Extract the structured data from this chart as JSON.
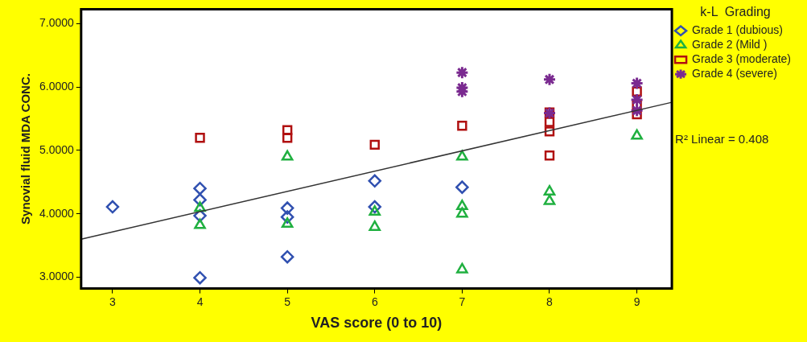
{
  "chart_data": {
    "type": "scatter",
    "xlabel": "VAS score (0 to 10)",
    "ylabel": "Synovial fluid MDA CONC.",
    "legend_title": "k-L  Grading",
    "legend": "right",
    "grid": false,
    "xlim": [
      2.64,
      9.4
    ],
    "xticks": [
      3,
      4,
      5,
      6,
      7,
      8,
      9
    ],
    "ylim": [
      2.82,
      7.23
    ],
    "yticks": [
      {
        "value": 3,
        "label": "3.0000"
      },
      {
        "value": 4,
        "label": "4.0000"
      },
      {
        "value": 5,
        "label": "5.0000"
      },
      {
        "value": 6,
        "label": "6.0000"
      },
      {
        "value": 7,
        "label": "7.0000"
      }
    ],
    "series": [
      {
        "name": "Grade 1 (dubious)",
        "color": "#3050b0",
        "marker": "diamond",
        "x": [
          3,
          4,
          4,
          4,
          4,
          5,
          5,
          5,
          6,
          6,
          7
        ],
        "values": [
          4.11,
          4.4,
          4.22,
          3.97,
          2.99,
          4.09,
          3.95,
          3.32,
          4.52,
          4.11,
          4.42
        ]
      },
      {
        "name": "Grade 2 (Mild )",
        "color": "#20b040",
        "marker": "triangle",
        "x": [
          4,
          4,
          5,
          5,
          6,
          6,
          7,
          7,
          7,
          7,
          8,
          8,
          9
        ],
        "values": [
          4.09,
          3.82,
          4.9,
          3.84,
          4.03,
          3.79,
          4.9,
          4.12,
          4.0,
          3.12,
          4.35,
          4.2,
          5.23
        ]
      },
      {
        "name": "Grade 3 (moderate)",
        "color": "#b01010",
        "marker": "square",
        "x": [
          4,
          5,
          5,
          6,
          7,
          8,
          8,
          8,
          8,
          9,
          9,
          9
        ],
        "values": [
          5.2,
          5.32,
          5.2,
          5.09,
          5.39,
          5.6,
          5.45,
          5.3,
          4.92,
          5.93,
          5.71,
          5.57
        ]
      },
      {
        "name": "Grade 4 (severe)",
        "color": "#7a2a90",
        "marker": "cross",
        "x": [
          7,
          7,
          7,
          8,
          8,
          9,
          9,
          9
        ],
        "values": [
          6.23,
          5.99,
          5.93,
          6.12,
          5.59,
          6.06,
          5.8,
          5.63
        ]
      },
      {
        "type": "line",
        "color": "#333333",
        "marker": "none",
        "line_style": "solid",
        "x": [
          2.64,
          9.4
        ],
        "values": [
          3.6,
          5.76
        ]
      }
    ],
    "annotations": [
      "R² Linear = 0.408"
    ]
  }
}
